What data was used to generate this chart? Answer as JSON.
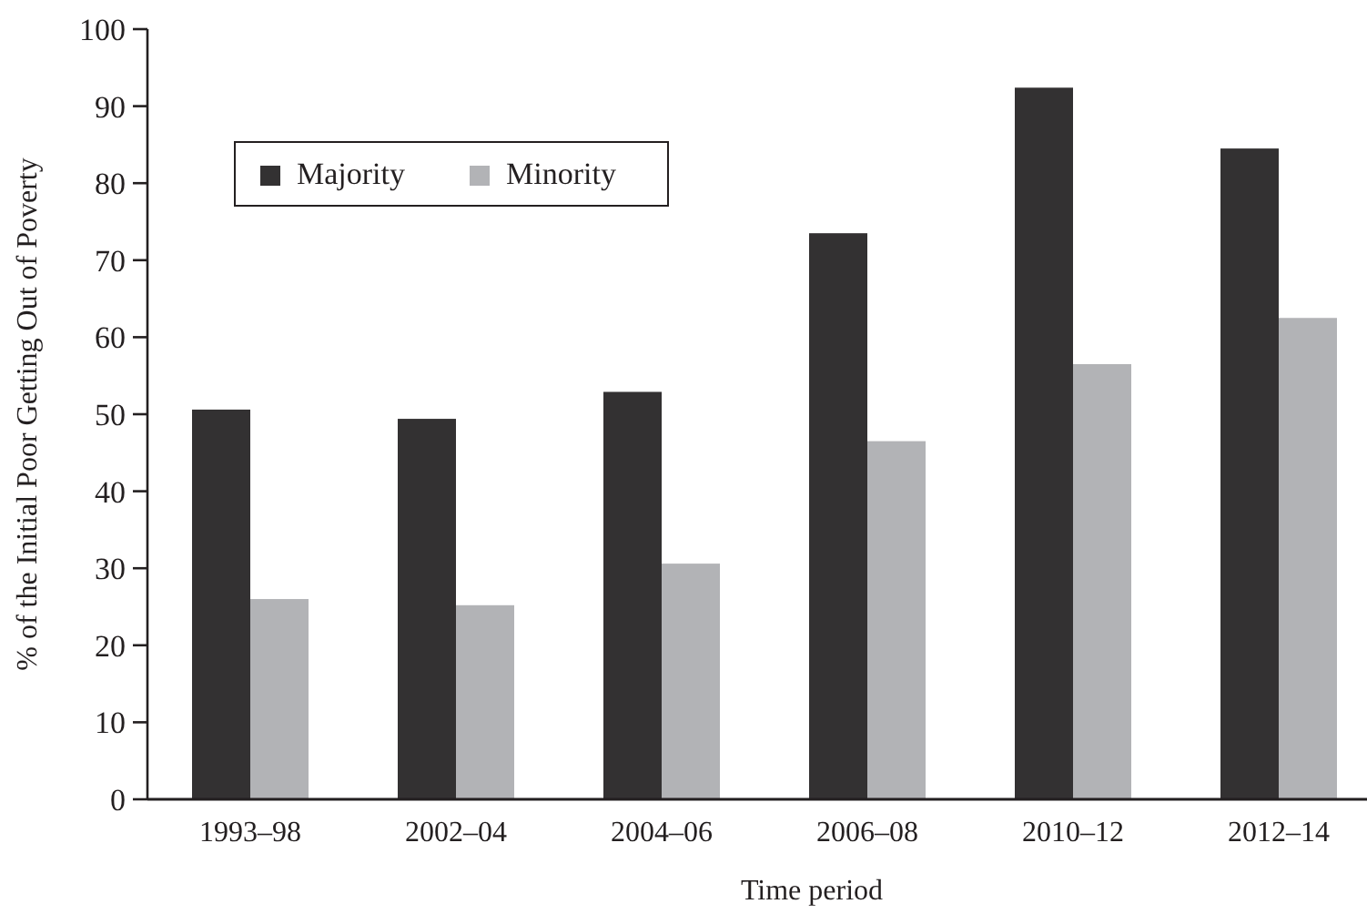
{
  "chart_data": {
    "type": "bar",
    "xlabel": "Time period",
    "ylabel": "% of the Initial Poor Getting Out of Poverty",
    "categories": [
      "1993–98",
      "2002–04",
      "2004–06",
      "2006–08",
      "2010–12",
      "2012–14"
    ],
    "series": [
      {
        "name": "Majority",
        "color": "#333132",
        "values": [
          50.6,
          49.4,
          52.9,
          73.5,
          92.4,
          84.5
        ]
      },
      {
        "name": "Minority",
        "color": "#b2b3b6",
        "values": [
          26.0,
          25.2,
          30.6,
          46.5,
          56.5,
          62.5
        ]
      }
    ],
    "ylim": [
      0,
      100
    ],
    "yticks": [
      0,
      10,
      20,
      30,
      40,
      50,
      60,
      70,
      80,
      90,
      100
    ],
    "grid": false,
    "legend": "top left"
  }
}
